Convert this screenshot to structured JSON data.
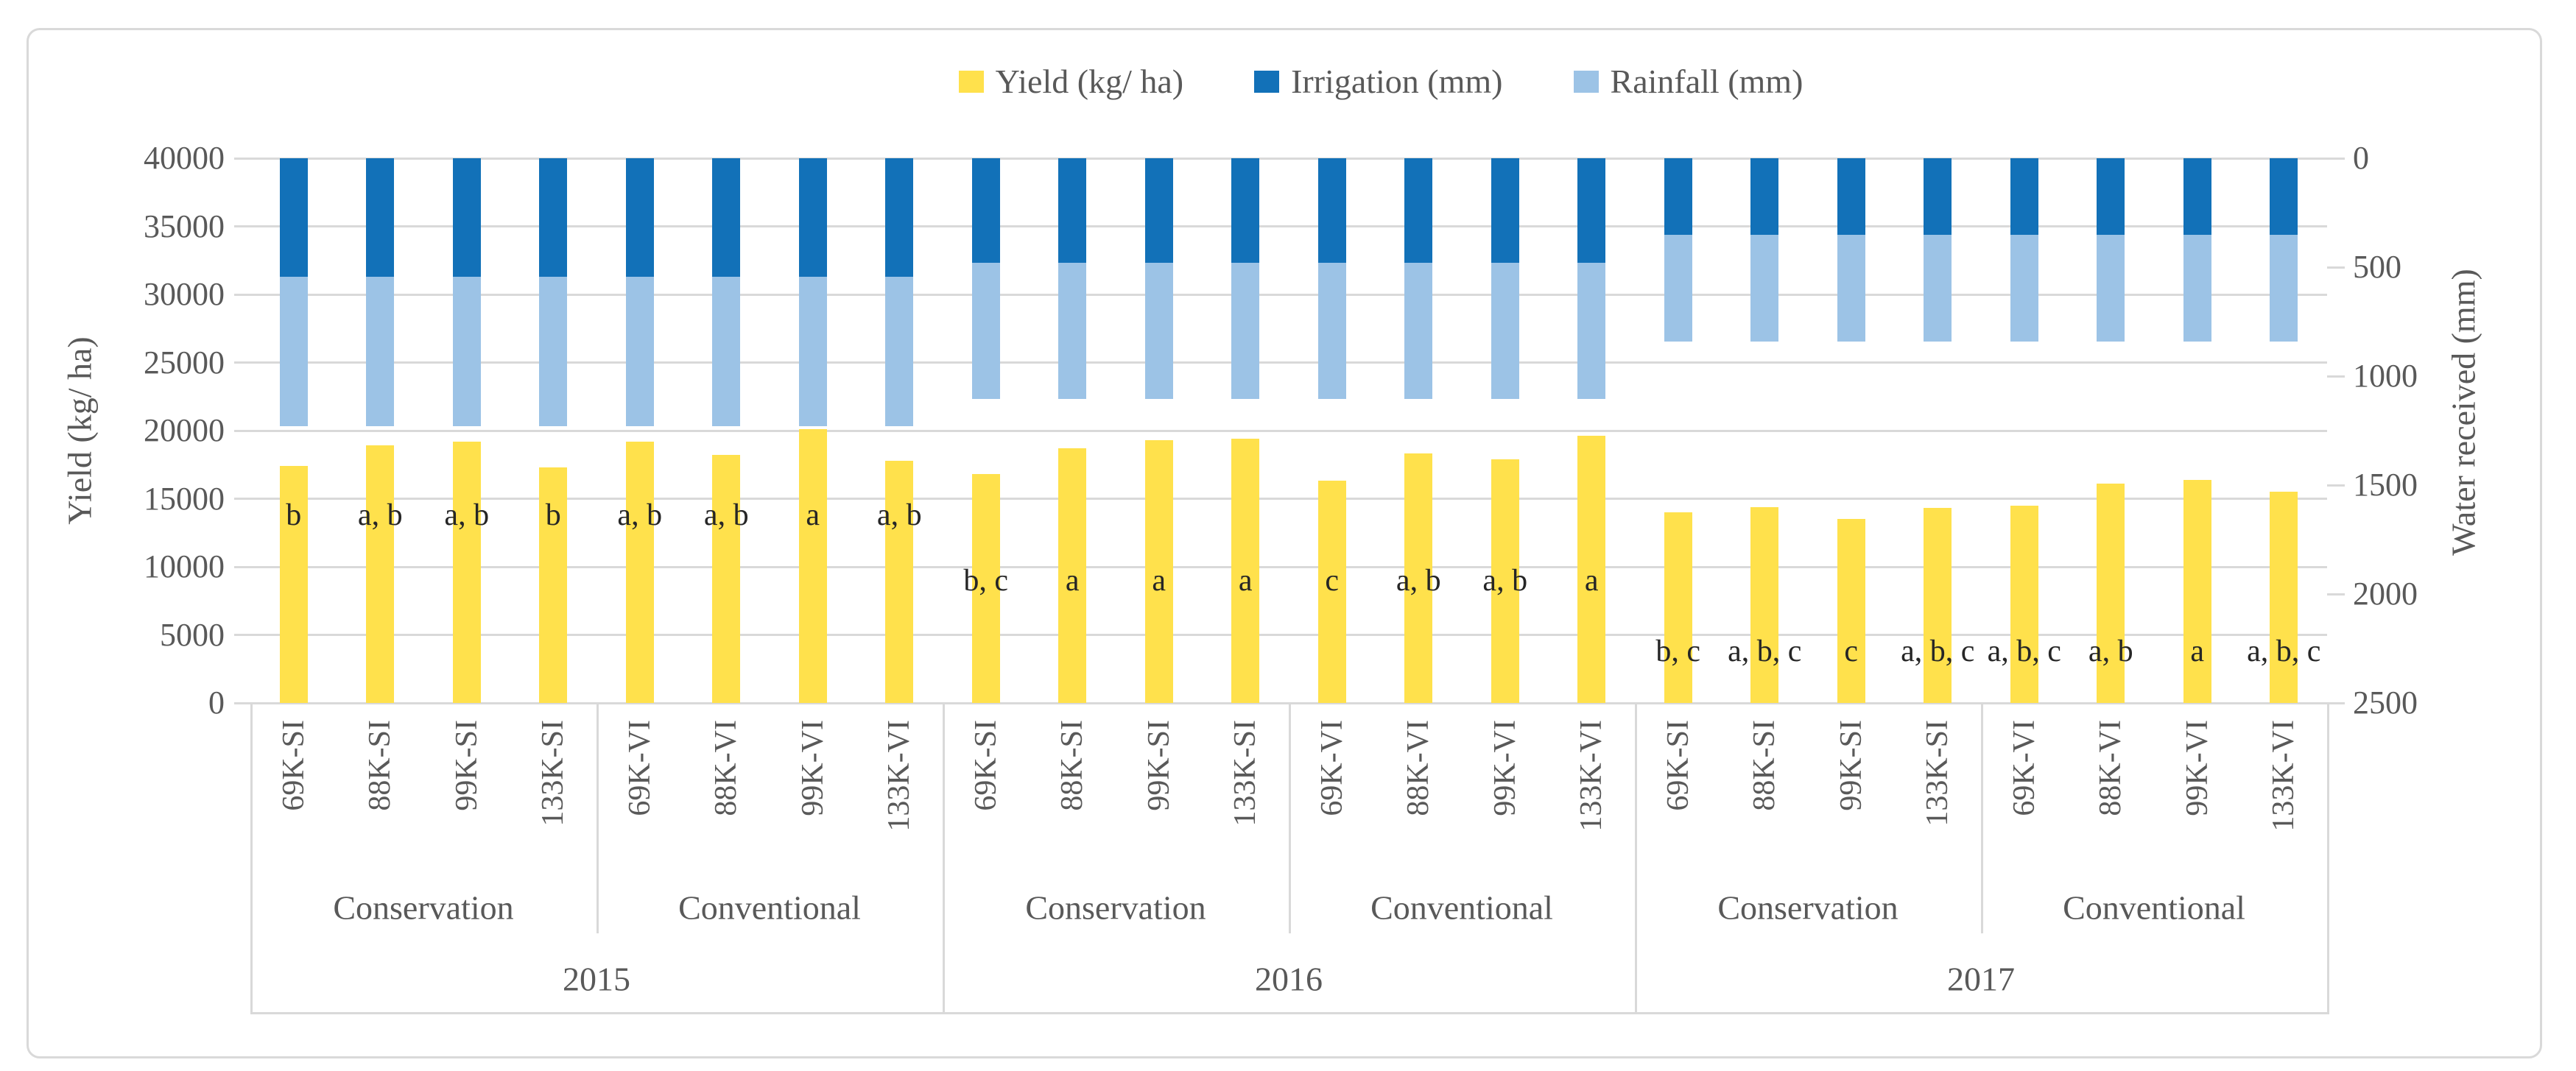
{
  "colors": {
    "yield": "#FFE14C",
    "irrigation": "#1271B8",
    "rainfall": "#9CC3E6",
    "gridline": "#D9D9D9",
    "axis_text": "#595959",
    "sig_text": "#262626"
  },
  "chart_data": {
    "type": "bar",
    "title": "",
    "legend": [
      {
        "label": "Yield (kg/ ha)",
        "color": "#FFE14C"
      },
      {
        "label": "Irrigation (mm)",
        "color": "#1271B8"
      },
      {
        "label": "Rainfall (mm)",
        "color": "#9CC3E6"
      }
    ],
    "left_axis": {
      "label": "Yield (kg/ ha)",
      "min": 0,
      "max": 40000,
      "ticks": [
        0,
        5000,
        10000,
        15000,
        20000,
        25000,
        30000,
        35000,
        40000
      ]
    },
    "right_axis": {
      "label": "Water received (mm)",
      "min": 0,
      "max": 2500,
      "inverted": true,
      "ticks": [
        0,
        500,
        1000,
        1500,
        2000,
        2500
      ]
    },
    "grid": true,
    "legend_position": "top",
    "groups": [
      {
        "year": "2015",
        "irrigation_mm": 545,
        "rainfall_mm": 685,
        "sig_row_value": 13800,
        "subgroups": [
          {
            "name": "Conservation",
            "bars": [
              {
                "category": "69K-SI",
                "yield_kg_ha": 17400,
                "sig": "b"
              },
              {
                "category": "88K-SI",
                "yield_kg_ha": 18900,
                "sig": "a, b"
              },
              {
                "category": "99K-SI",
                "yield_kg_ha": 19200,
                "sig": "a, b"
              },
              {
                "category": "133K-SI",
                "yield_kg_ha": 17300,
                "sig": "b"
              }
            ]
          },
          {
            "name": "Conventional",
            "bars": [
              {
                "category": "69K-VI",
                "yield_kg_ha": 19200,
                "sig": "a, b"
              },
              {
                "category": "88K-VI",
                "yield_kg_ha": 18200,
                "sig": "a, b"
              },
              {
                "category": "99K-VI",
                "yield_kg_ha": 20100,
                "sig": "a"
              },
              {
                "category": "133K-VI",
                "yield_kg_ha": 17800,
                "sig": "a, b"
              }
            ]
          }
        ]
      },
      {
        "year": "2016",
        "irrigation_mm": 480,
        "rainfall_mm": 625,
        "sig_row_value": 9000,
        "subgroups": [
          {
            "name": "Conservation",
            "bars": [
              {
                "category": "69K-SI",
                "yield_kg_ha": 16800,
                "sig": "b, c"
              },
              {
                "category": "88K-SI",
                "yield_kg_ha": 18700,
                "sig": "a"
              },
              {
                "category": "99K-SI",
                "yield_kg_ha": 19300,
                "sig": "a"
              },
              {
                "category": "133K-SI",
                "yield_kg_ha": 19400,
                "sig": "a"
              }
            ]
          },
          {
            "name": "Conventional",
            "bars": [
              {
                "category": "69K-VI",
                "yield_kg_ha": 16300,
                "sig": "c"
              },
              {
                "category": "88K-VI",
                "yield_kg_ha": 18300,
                "sig": "a, b"
              },
              {
                "category": "99K-VI",
                "yield_kg_ha": 17900,
                "sig": "a, b"
              },
              {
                "category": "133K-VI",
                "yield_kg_ha": 19600,
                "sig": "a"
              }
            ]
          }
        ]
      },
      {
        "year": "2017",
        "irrigation_mm": 350,
        "rainfall_mm": 490,
        "sig_row_value": 3800,
        "subgroups": [
          {
            "name": "Conservation",
            "bars": [
              {
                "category": "69K-SI",
                "yield_kg_ha": 14000,
                "sig": "b, c"
              },
              {
                "category": "88K-SI",
                "yield_kg_ha": 14400,
                "sig": "a, b, c"
              },
              {
                "category": "99K-SI",
                "yield_kg_ha": 13500,
                "sig": "c"
              },
              {
                "category": "133K-SI",
                "yield_kg_ha": 14300,
                "sig": "a, b, c"
              }
            ]
          },
          {
            "name": "Conventional",
            "bars": [
              {
                "category": "69K-VI",
                "yield_kg_ha": 14500,
                "sig": "a, b, c"
              },
              {
                "category": "88K-VI",
                "yield_kg_ha": 16100,
                "sig": "a, b"
              },
              {
                "category": "99K-VI",
                "yield_kg_ha": 16400,
                "sig": "a"
              },
              {
                "category": "133K-VI",
                "yield_kg_ha": 15500,
                "sig": "a, b, c"
              }
            ]
          }
        ]
      }
    ]
  }
}
